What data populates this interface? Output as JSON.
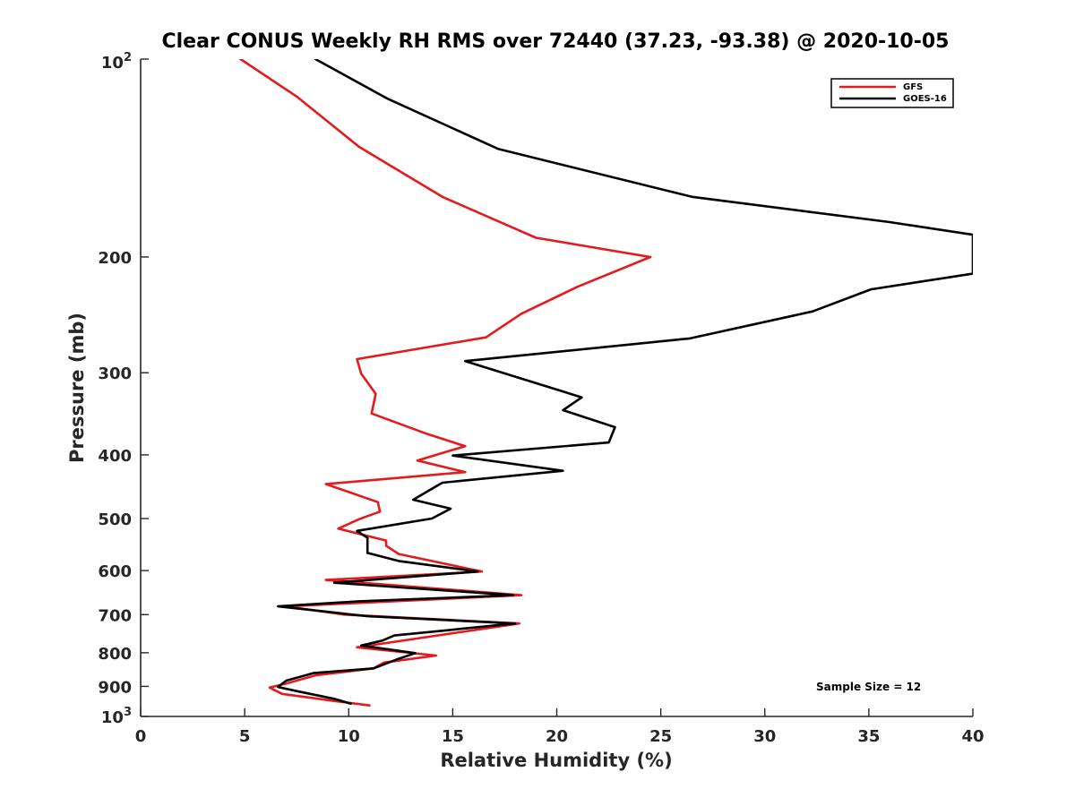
{
  "chart_data": {
    "type": "line",
    "title": "Clear CONUS Weekly RH RMS over 72440 (37.23, -93.38) @ 2020-10-05",
    "xlabel": "Relative Humidity (%)",
    "ylabel": "Pressure (mb)",
    "xlim": [
      0,
      40
    ],
    "ylim": [
      1000,
      100
    ],
    "y_scale": "log",
    "y_reversed": true,
    "x_ticks": [
      0,
      5,
      10,
      15,
      20,
      25,
      30,
      35,
      40
    ],
    "x_tick_labels": [
      "0",
      "5",
      "10",
      "15",
      "20",
      "25",
      "30",
      "35",
      "40"
    ],
    "y_ticks": [
      {
        "value": 100,
        "base": "10",
        "sup": "2"
      },
      {
        "value": 200,
        "base": "200",
        "sup": ""
      },
      {
        "value": 300,
        "base": "300",
        "sup": ""
      },
      {
        "value": 400,
        "base": "400",
        "sup": ""
      },
      {
        "value": 500,
        "base": "500",
        "sup": ""
      },
      {
        "value": 600,
        "base": "600",
        "sup": ""
      },
      {
        "value": 700,
        "base": "700",
        "sup": ""
      },
      {
        "value": 800,
        "base": "800",
        "sup": ""
      },
      {
        "value": 900,
        "base": "900",
        "sup": ""
      },
      {
        "value": 1000,
        "base": "10",
        "sup": "3"
      }
    ],
    "grid": false,
    "legend_position": "top-right",
    "annotation": "Sample Size = 12",
    "series": [
      {
        "name": "GFS",
        "color": "#e41a1c",
        "points": [
          [
            4.8,
            100
          ],
          [
            7.5,
            114
          ],
          [
            10.5,
            136
          ],
          [
            14.5,
            162
          ],
          [
            19.0,
            187
          ],
          [
            24.5,
            200
          ],
          [
            21.0,
            222
          ],
          [
            18.3,
            244
          ],
          [
            16.6,
            265
          ],
          [
            10.4,
            286
          ],
          [
            10.6,
            301
          ],
          [
            11.3,
            323
          ],
          [
            11.1,
            346
          ],
          [
            13.8,
            372
          ],
          [
            15.6,
            388
          ],
          [
            13.3,
            408
          ],
          [
            15.6,
            425
          ],
          [
            8.9,
            443
          ],
          [
            11.4,
            472
          ],
          [
            11.5,
            488
          ],
          [
            10.5,
            501
          ],
          [
            9.5,
            518
          ],
          [
            11.8,
            540
          ],
          [
            11.8,
            550
          ],
          [
            12.4,
            566
          ],
          [
            16.4,
            602
          ],
          [
            8.9,
            620
          ],
          [
            18.3,
            654
          ],
          [
            7.0,
            680
          ],
          [
            9.8,
            700
          ],
          [
            18.2,
            722
          ],
          [
            12.8,
            765
          ],
          [
            10.4,
            785
          ],
          [
            14.2,
            808
          ],
          [
            11.7,
            828
          ],
          [
            11.2,
            845
          ],
          [
            8.4,
            866
          ],
          [
            7.0,
            891
          ],
          [
            6.2,
            904
          ],
          [
            6.8,
            924
          ],
          [
            9.5,
            949
          ],
          [
            11.0,
            962
          ]
        ]
      },
      {
        "name": "GOES-16",
        "color": "#000000",
        "points": [
          [
            8.4,
            100
          ],
          [
            11.9,
            115
          ],
          [
            17.2,
            137
          ],
          [
            26.5,
            162
          ],
          [
            36.0,
            177
          ],
          [
            40.0,
            185
          ],
          [
            40.0,
            212
          ],
          [
            35.1,
            224
          ],
          [
            32.3,
            242
          ],
          [
            26.4,
            266
          ],
          [
            15.6,
            288
          ],
          [
            18.7,
            309
          ],
          [
            21.2,
            327
          ],
          [
            20.3,
            342
          ],
          [
            22.8,
            363
          ],
          [
            22.5,
            383
          ],
          [
            15.0,
            401
          ],
          [
            20.3,
            423
          ],
          [
            14.5,
            441
          ],
          [
            13.1,
            468
          ],
          [
            14.9,
            483
          ],
          [
            14.0,
            500
          ],
          [
            10.4,
            522
          ],
          [
            10.9,
            535
          ],
          [
            10.9,
            564
          ],
          [
            12.4,
            580
          ],
          [
            16.2,
            602
          ],
          [
            9.3,
            626
          ],
          [
            17.9,
            654
          ],
          [
            10.5,
            668
          ],
          [
            6.6,
            680
          ],
          [
            10.9,
            704
          ],
          [
            18.0,
            722
          ],
          [
            12.2,
            753
          ],
          [
            11.6,
            767
          ],
          [
            10.6,
            780
          ],
          [
            13.2,
            801
          ],
          [
            12.3,
            819
          ],
          [
            11.2,
            845
          ],
          [
            8.3,
            859
          ],
          [
            7.0,
            882
          ],
          [
            6.6,
            902
          ],
          [
            7.5,
            915
          ],
          [
            9.3,
            940
          ],
          [
            10.1,
            956
          ]
        ]
      }
    ]
  }
}
